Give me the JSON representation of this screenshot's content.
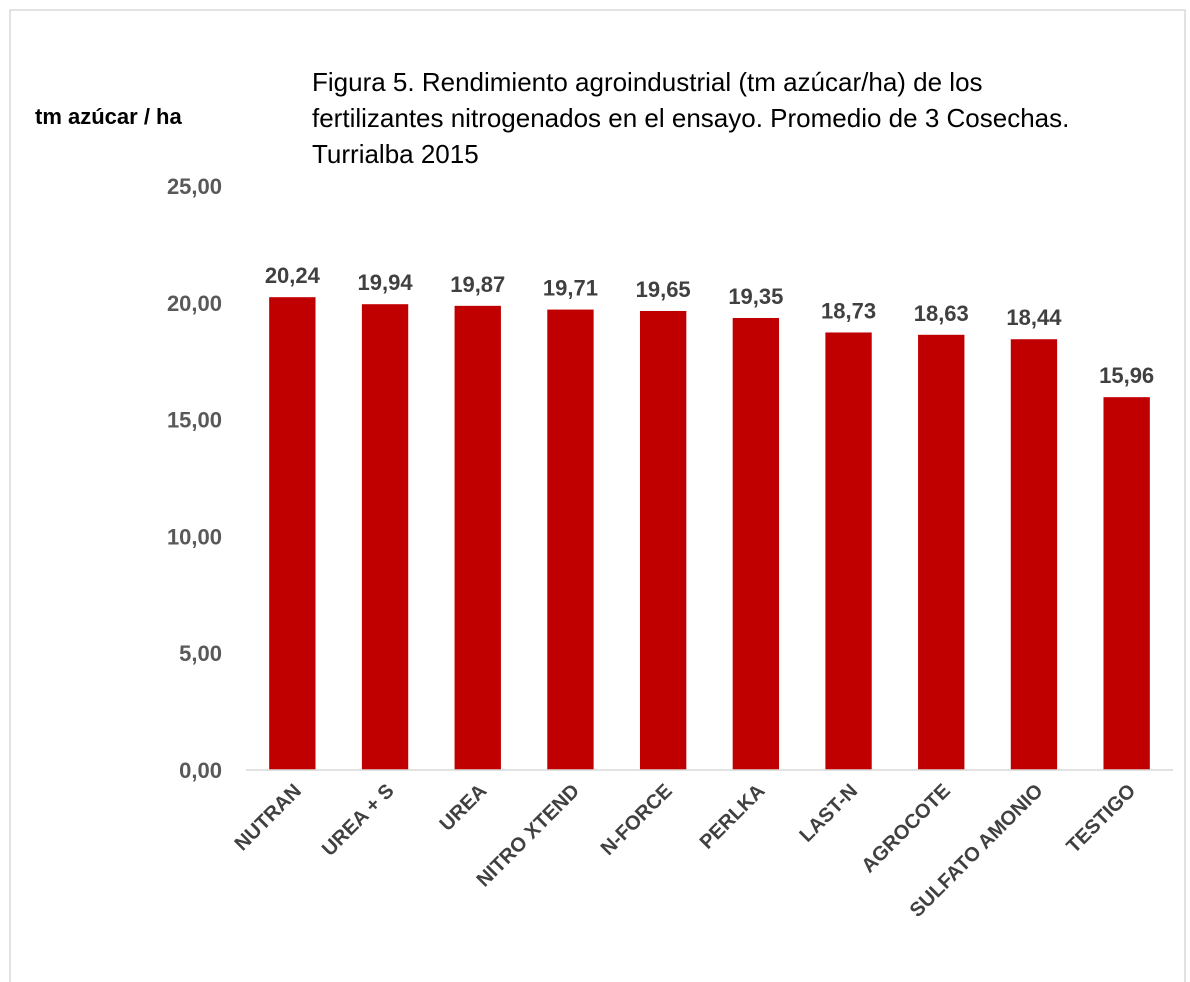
{
  "chart_data": {
    "type": "bar",
    "title": "Figura 5. Rendimiento agroindustrial (tm azúcar/ha) de los fertilizantes nitrogenados en el ensayo.  Promedio de 3 Cosechas.  Turrialba 2015",
    "y_label": "tm azúcar / ha",
    "categories": [
      "NUTRAN",
      "UREA + S",
      "UREA",
      "NITRO XTEND",
      "N-FORCE",
      "PERLKA",
      "LAST-N",
      "AGROCOTE",
      "SULFATO AMONIO",
      "TESTIGO"
    ],
    "values": [
      20.24,
      19.94,
      19.87,
      19.71,
      19.65,
      19.35,
      18.73,
      18.63,
      18.44,
      15.96
    ],
    "value_labels": [
      "20,24",
      "19,94",
      "19,87",
      "19,71",
      "19,65",
      "19,35",
      "18,73",
      "18,63",
      "18,44",
      "15,96"
    ],
    "color": "#c00000",
    "ylim": [
      0,
      25
    ],
    "yticks": [
      {
        "value": 0,
        "label": "0,00"
      },
      {
        "value": 5,
        "label": "5,00"
      },
      {
        "value": 10,
        "label": "10,00"
      },
      {
        "value": 15,
        "label": "15,00"
      },
      {
        "value": 20,
        "label": "20,00"
      },
      {
        "value": 25,
        "label": "25,00"
      }
    ],
    "grid": false
  }
}
